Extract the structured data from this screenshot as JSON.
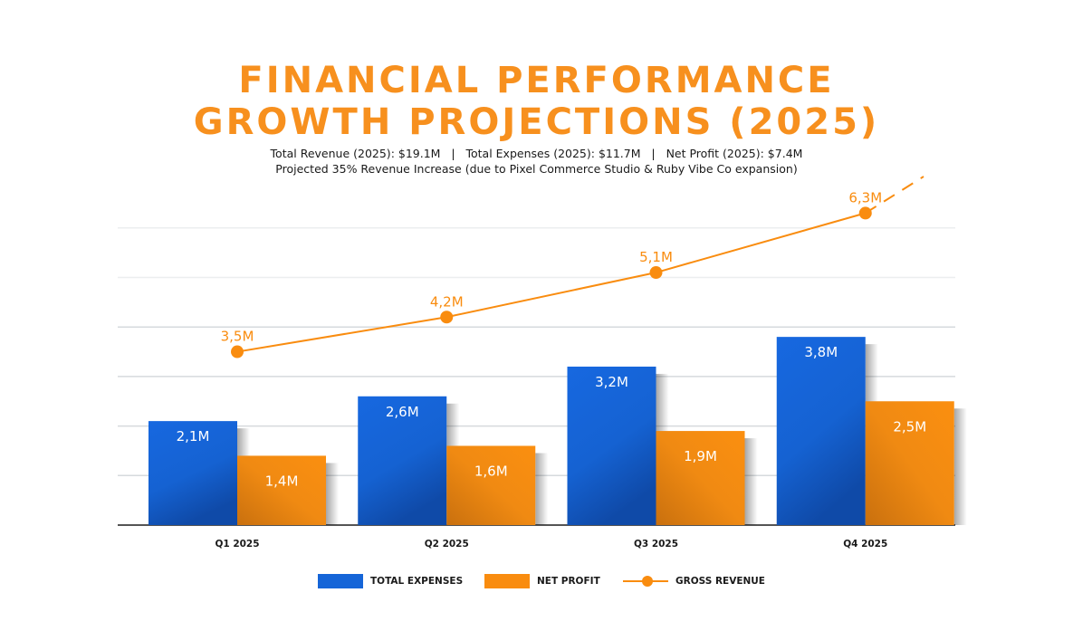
{
  "header": {
    "title_line1": "FINANCIAL PERFORMANCE",
    "title_line2": "GROWTH PROJECTIONS (2025)",
    "subtitle_line1": "Total Revenue (2025): $19.1M   |   Total Expenses (2025): $11.7M   |   Net Profit (2025): $7.4M",
    "subtitle_line2": "Projected 35% Revenue Increase (due to Pixel Commerce Studio & Ruby Vibe Co expansion)"
  },
  "colors": {
    "title": "#f7901e",
    "expenses": "#1565d8",
    "profit": "#f98c0f",
    "revenue": "#f98c0f",
    "grid": "#d6dadd",
    "axis": "#555555"
  },
  "chart_data": {
    "type": "bar",
    "title": "FINANCIAL PERFORMANCE GROWTH PROJECTIONS (2025)",
    "xlabel": "",
    "ylabel": "",
    "ylim": [
      0,
      6
    ],
    "grid": true,
    "legend_position": "bottom",
    "categories": [
      "Q1 2025",
      "Q2 2025",
      "Q3 2025",
      "Q4 2025"
    ],
    "series": [
      {
        "name": "TOTAL EXPENSES",
        "kind": "bar",
        "values": [
          2.1,
          2.6,
          3.2,
          3.8
        ],
        "labels": [
          "2,1M",
          "2,6M",
          "3,2M",
          "3,8M"
        ]
      },
      {
        "name": "NET PROFIT",
        "kind": "bar",
        "values": [
          1.4,
          1.6,
          1.9,
          2.5
        ],
        "labels": [
          "1,4M",
          "1,6M",
          "1,9M",
          "2,5M"
        ]
      },
      {
        "name": "GROSS REVENUE",
        "kind": "line",
        "values": [
          3.5,
          4.2,
          5.1,
          6.3
        ],
        "labels": [
          "3,5M",
          "4,2M",
          "5,1M",
          "6,3M"
        ],
        "projection": "dashed continuation beyond Q4"
      }
    ]
  },
  "legend": [
    {
      "label": "TOTAL EXPENSES",
      "icon": "blue-swatch"
    },
    {
      "label": "NET PROFIT",
      "icon": "orange-swatch"
    },
    {
      "label": "GROSS REVENUE",
      "icon": "line-with-dot"
    }
  ]
}
